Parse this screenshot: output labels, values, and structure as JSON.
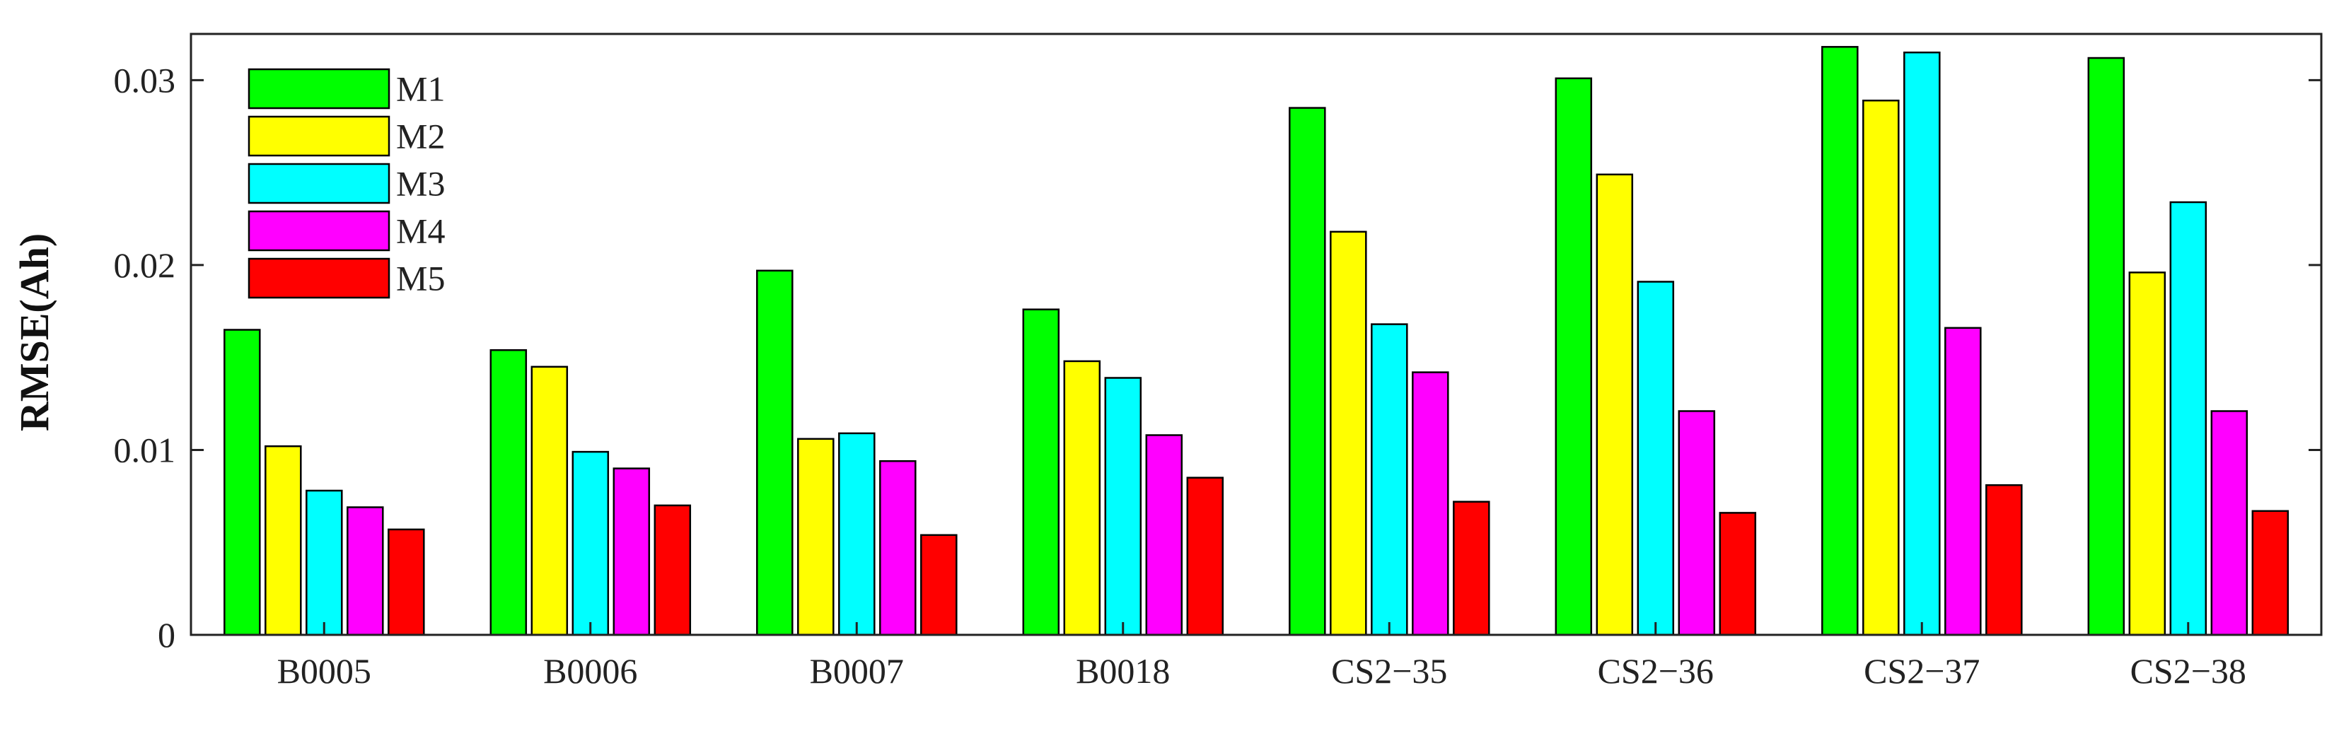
{
  "chart_data": {
    "type": "bar",
    "title": "",
    "xlabel": "",
    "ylabel": "RMSE(Ah)",
    "ylim": [
      0,
      0.0325
    ],
    "yticks": [
      0,
      0.01,
      0.02,
      0.03
    ],
    "ytick_labels": [
      "0",
      "0.01",
      "0.02",
      "0.03"
    ],
    "grid": false,
    "legend_position": "top-left",
    "categories": [
      "B0005",
      "B0006",
      "B0007",
      "B0018",
      "CS2−35",
      "CS2−36",
      "CS2−37",
      "CS2−38"
    ],
    "series": [
      {
        "name": "M1",
        "color": "#00ff00",
        "values": [
          0.0165,
          0.0154,
          0.0197,
          0.0176,
          0.0285,
          0.0301,
          0.0318,
          0.0312
        ]
      },
      {
        "name": "M2",
        "color": "#ffff00",
        "values": [
          0.0102,
          0.0145,
          0.0106,
          0.0148,
          0.0218,
          0.0249,
          0.0289,
          0.0196
        ]
      },
      {
        "name": "M3",
        "color": "#00ffff",
        "values": [
          0.0078,
          0.0099,
          0.0109,
          0.0139,
          0.0168,
          0.0191,
          0.0315,
          0.0234
        ]
      },
      {
        "name": "M4",
        "color": "#ff00ff",
        "values": [
          0.0069,
          0.009,
          0.0094,
          0.0108,
          0.0142,
          0.0121,
          0.0166,
          0.0121
        ]
      },
      {
        "name": "M5",
        "color": "#ff0000",
        "values": [
          0.0057,
          0.007,
          0.0054,
          0.0085,
          0.0072,
          0.0066,
          0.0081,
          0.0067
        ]
      }
    ]
  }
}
